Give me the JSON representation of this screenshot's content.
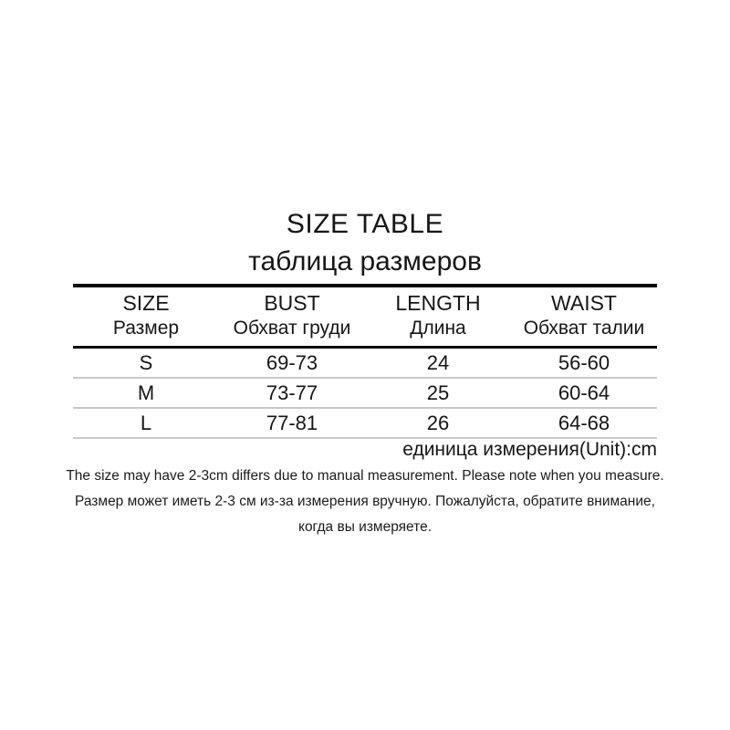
{
  "title": "SIZE TABLE",
  "subtitle": "таблица размеров",
  "table": {
    "columns": [
      {
        "en": "SIZE",
        "ru": "Размер"
      },
      {
        "en": "BUST",
        "ru": "Обхват груди"
      },
      {
        "en": "LENGTH",
        "ru": "Длина"
      },
      {
        "en": "WAIST",
        "ru": "Обхват талии"
      }
    ],
    "rows": [
      {
        "cells": [
          "S",
          "69-73",
          "24",
          "56-60"
        ]
      },
      {
        "cells": [
          "M",
          "73-77",
          "25",
          "60-64"
        ]
      },
      {
        "cells": [
          "L",
          "77-81",
          "26",
          "64-68"
        ]
      }
    ]
  },
  "unit_note": "единица измерения(Unit):cm",
  "measurement_note": {
    "line_en": "The size may have 2-3cm differs due to manual measurement. Please note when you measure.",
    "line_ru_1": "Размер может иметь 2-3 см из-за измерения вручную. Пожалуйста, обратите внимание,",
    "line_ru_2": "когда вы измеряете."
  },
  "colors": {
    "background": "#ffffff",
    "text": "#161616",
    "heavy_rule": "#050505",
    "light_rule": "#c8c8c8"
  },
  "chart_data": {
    "type": "table",
    "title": "SIZE TABLE",
    "subtitle": "таблица размеров",
    "unit": "cm",
    "columns": [
      "SIZE / Размер",
      "BUST / Обхват груди",
      "LENGTH / Длина",
      "WAIST / Обхват талии"
    ],
    "rows": [
      [
        "S",
        "69-73",
        "24",
        "56-60"
      ],
      [
        "M",
        "73-77",
        "25",
        "60-64"
      ],
      [
        "L",
        "77-81",
        "26",
        "64-68"
      ]
    ]
  }
}
